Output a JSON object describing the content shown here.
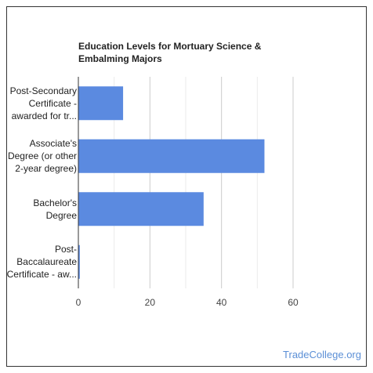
{
  "chart_data": {
    "type": "bar",
    "orientation": "horizontal",
    "title": [
      "Education Levels for Mortuary Science &",
      "Embalming Majors"
    ],
    "categories": [
      [
        "Post-Secondary",
        "Certificate -",
        "awarded for tr..."
      ],
      [
        "Associate's",
        "Degree (or other",
        "2-year degree)"
      ],
      [
        "Bachelor's",
        "Degree"
      ],
      [
        "Post-",
        "Baccalaureate",
        "Certificate - aw..."
      ]
    ],
    "values": [
      12.5,
      52,
      35,
      0.4
    ],
    "xlim": [
      0,
      60
    ],
    "xticks": [
      "0",
      "20",
      "40",
      "60"
    ],
    "bar_color": "#5b8ae0",
    "grid": true,
    "legend": "none"
  },
  "credit": "TradeCollege.org"
}
